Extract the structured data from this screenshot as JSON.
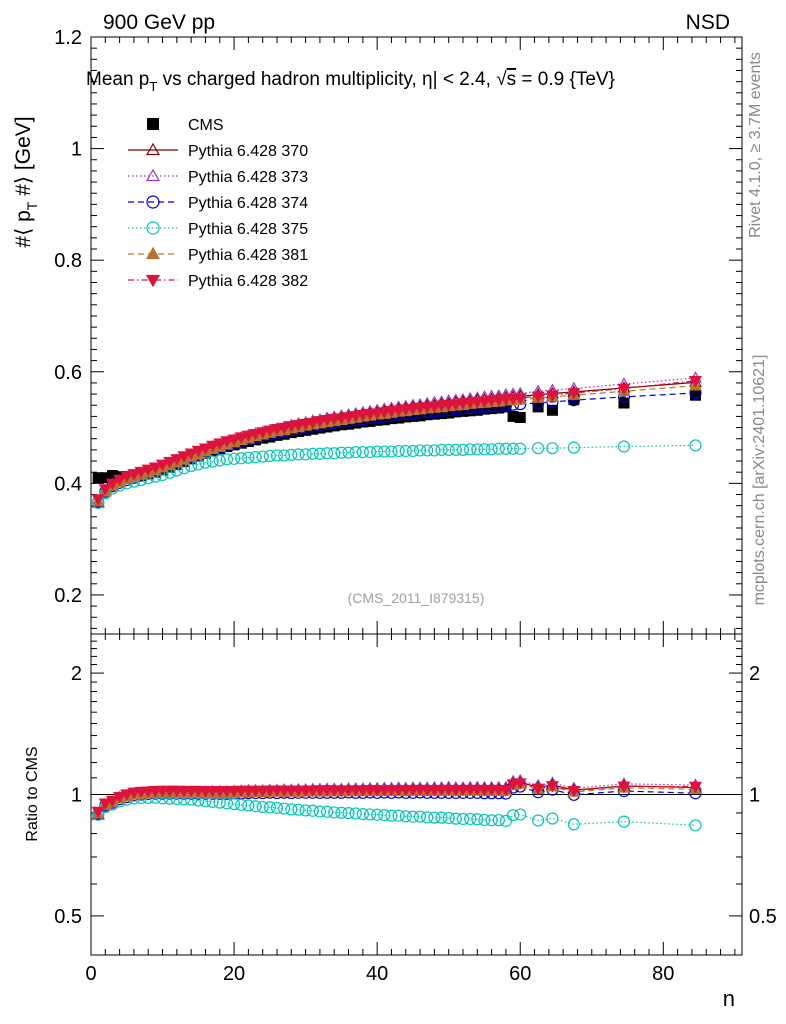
{
  "header": {
    "energy_label": "900 GeV pp",
    "process_label": "NSD"
  },
  "side_text": {
    "rivet": "Rivet 4.1.0, ≥ 3.7M events",
    "mcplots": "mcplots.cern.ch [arXiv:2401.10621]"
  },
  "chart_data": [
    {
      "type": "scatter",
      "panel": "main",
      "title": "Mean p_T vs charged hadron multiplicity, |η| < 2.4, √s = 0.9 {TeV}",
      "title_parts": {
        "prefix": "Mean p",
        "sub": "T",
        "middle": " vs charged hadron multiplicity, ",
        "eta": "η",
        "range": "| < 2.4, ",
        "sqrt": "√",
        "s": "s",
        "suffix": " = 0.9 {TeV}"
      },
      "ylabel": "#⟨ p_T #⟩ [GeV]",
      "ylabel_parts": {
        "pre": "#⟨ p",
        "sub": "T",
        "post": " #⟩ [GeV]"
      },
      "xlim": [
        0,
        91
      ],
      "ylim": [
        0.13,
        1.2
      ],
      "yticks": [
        0.2,
        0.4,
        0.6,
        0.8,
        1,
        1.2
      ],
      "ytick_labels": [
        "0.2",
        "0.4",
        "0.6",
        "0.8",
        "1",
        "1.2"
      ],
      "watermark": "(CMS_2011_I879315)",
      "x": [
        1,
        2,
        3,
        4,
        5,
        6,
        7,
        8,
        9,
        10,
        11,
        12,
        13,
        14,
        15,
        16,
        17,
        18,
        19,
        20,
        21,
        22,
        23,
        24,
        25,
        26,
        27,
        28,
        29,
        30,
        31,
        32,
        33,
        34,
        35,
        36,
        37,
        38,
        39,
        40,
        41,
        42,
        43,
        44,
        45,
        46,
        47,
        48,
        49,
        50,
        51,
        52,
        53,
        54,
        55,
        56,
        57,
        58,
        59,
        60,
        62.5,
        64.5,
        67.5,
        74.5,
        84.5
      ],
      "series": [
        {
          "name": "CMS",
          "color": "#000000",
          "marker": "square",
          "line": "none",
          "values": [
            0.41,
            0.41,
            0.414,
            0.412,
            0.412,
            0.412,
            0.414,
            0.417,
            0.42,
            0.424,
            0.429,
            0.434,
            0.439,
            0.444,
            0.449,
            0.454,
            0.458,
            0.462,
            0.466,
            0.469,
            0.472,
            0.475,
            0.478,
            0.481,
            0.483,
            0.486,
            0.488,
            0.491,
            0.493,
            0.495,
            0.497,
            0.499,
            0.501,
            0.503,
            0.505,
            0.506,
            0.508,
            0.51,
            0.511,
            0.513,
            0.514,
            0.516,
            0.517,
            0.519,
            0.52,
            0.521,
            0.523,
            0.524,
            0.525,
            0.526,
            0.528,
            0.529,
            0.53,
            0.531,
            0.533,
            0.534,
            0.535,
            0.537,
            0.52,
            0.518,
            0.537,
            0.531,
            0.55,
            0.544,
            0.558
          ]
        },
        {
          "name": "Pythia 6.428 370",
          "color": "#800000",
          "marker": "triangle-up-open",
          "line": "solid",
          "values": [
            0.365,
            0.385,
            0.396,
            0.403,
            0.408,
            0.412,
            0.416,
            0.42,
            0.424,
            0.428,
            0.433,
            0.438,
            0.443,
            0.448,
            0.453,
            0.458,
            0.463,
            0.467,
            0.471,
            0.475,
            0.479,
            0.482,
            0.486,
            0.489,
            0.492,
            0.495,
            0.498,
            0.501,
            0.503,
            0.506,
            0.508,
            0.511,
            0.513,
            0.515,
            0.517,
            0.519,
            0.521,
            0.523,
            0.525,
            0.527,
            0.529,
            0.531,
            0.533,
            0.534,
            0.536,
            0.537,
            0.539,
            0.54,
            0.542,
            0.543,
            0.545,
            0.546,
            0.547,
            0.549,
            0.55,
            0.551,
            0.552,
            0.554,
            0.555,
            0.556,
            0.559,
            0.561,
            0.564,
            0.571,
            0.581
          ]
        },
        {
          "name": "Pythia 6.428 373",
          "color": "#9932cc",
          "marker": "triangle-up-open",
          "line": "dotted",
          "values": [
            0.367,
            0.387,
            0.398,
            0.405,
            0.41,
            0.414,
            0.418,
            0.422,
            0.426,
            0.431,
            0.436,
            0.441,
            0.446,
            0.451,
            0.456,
            0.461,
            0.466,
            0.47,
            0.474,
            0.478,
            0.482,
            0.486,
            0.489,
            0.492,
            0.495,
            0.498,
            0.501,
            0.504,
            0.507,
            0.509,
            0.512,
            0.514,
            0.517,
            0.519,
            0.521,
            0.523,
            0.525,
            0.527,
            0.529,
            0.531,
            0.533,
            0.535,
            0.537,
            0.538,
            0.54,
            0.541,
            0.543,
            0.545,
            0.546,
            0.548,
            0.549,
            0.55,
            0.552,
            0.553,
            0.555,
            0.556,
            0.557,
            0.559,
            0.56,
            0.561,
            0.565,
            0.567,
            0.57,
            0.578,
            0.589
          ]
        },
        {
          "name": "Pythia 6.428 374",
          "color": "#0000cd",
          "marker": "circle-open",
          "line": "dashed",
          "values": [
            0.366,
            0.385,
            0.395,
            0.401,
            0.406,
            0.41,
            0.414,
            0.418,
            0.422,
            0.426,
            0.431,
            0.436,
            0.441,
            0.446,
            0.451,
            0.456,
            0.46,
            0.464,
            0.468,
            0.472,
            0.475,
            0.479,
            0.482,
            0.485,
            0.488,
            0.49,
            0.493,
            0.495,
            0.498,
            0.5,
            0.502,
            0.504,
            0.506,
            0.508,
            0.51,
            0.512,
            0.513,
            0.515,
            0.517,
            0.518,
            0.52,
            0.521,
            0.523,
            0.524,
            0.525,
            0.527,
            0.528,
            0.529,
            0.53,
            0.531,
            0.533,
            0.534,
            0.535,
            0.536,
            0.537,
            0.538,
            0.539,
            0.54,
            0.541,
            0.542,
            0.544,
            0.546,
            0.549,
            0.555,
            0.562
          ]
        },
        {
          "name": "Pythia 6.428 375",
          "color": "#00c8b4",
          "marker": "circle-open",
          "line": "dotted",
          "values": [
            0.365,
            0.382,
            0.391,
            0.396,
            0.4,
            0.403,
            0.406,
            0.409,
            0.412,
            0.415,
            0.419,
            0.423,
            0.427,
            0.431,
            0.434,
            0.437,
            0.439,
            0.441,
            0.443,
            0.444,
            0.445,
            0.446,
            0.447,
            0.448,
            0.449,
            0.45,
            0.45,
            0.451,
            0.452,
            0.452,
            0.453,
            0.453,
            0.454,
            0.454,
            0.455,
            0.455,
            0.456,
            0.456,
            0.456,
            0.457,
            0.457,
            0.457,
            0.458,
            0.458,
            0.458,
            0.459,
            0.459,
            0.459,
            0.46,
            0.46,
            0.46,
            0.46,
            0.461,
            0.461,
            0.461,
            0.461,
            0.462,
            0.462,
            0.462,
            0.462,
            0.463,
            0.463,
            0.464,
            0.466,
            0.468
          ]
        },
        {
          "name": "Pythia 6.428 381",
          "color": "#b87333",
          "marker": "triangle-up-filled",
          "line": "dashed",
          "values": [
            0.368,
            0.385,
            0.395,
            0.402,
            0.407,
            0.411,
            0.415,
            0.419,
            0.423,
            0.428,
            0.432,
            0.437,
            0.442,
            0.447,
            0.452,
            0.457,
            0.461,
            0.465,
            0.469,
            0.473,
            0.477,
            0.48,
            0.484,
            0.487,
            0.49,
            0.493,
            0.495,
            0.498,
            0.5,
            0.503,
            0.505,
            0.507,
            0.509,
            0.511,
            0.513,
            0.515,
            0.517,
            0.519,
            0.521,
            0.523,
            0.524,
            0.526,
            0.528,
            0.529,
            0.531,
            0.532,
            0.534,
            0.535,
            0.536,
            0.538,
            0.539,
            0.54,
            0.542,
            0.543,
            0.544,
            0.545,
            0.546,
            0.548,
            0.549,
            0.55,
            0.553,
            0.555,
            0.558,
            0.565,
            0.575
          ]
        },
        {
          "name": "Pythia 6.428 382",
          "color": "#dc143c",
          "marker": "triangle-down-filled",
          "line": "dashdot",
          "values": [
            0.372,
            0.39,
            0.4,
            0.407,
            0.413,
            0.417,
            0.421,
            0.425,
            0.429,
            0.434,
            0.439,
            0.444,
            0.449,
            0.454,
            0.459,
            0.463,
            0.468,
            0.472,
            0.476,
            0.479,
            0.483,
            0.486,
            0.489,
            0.492,
            0.495,
            0.498,
            0.5,
            0.503,
            0.505,
            0.507,
            0.509,
            0.512,
            0.514,
            0.516,
            0.517,
            0.519,
            0.521,
            0.523,
            0.525,
            0.526,
            0.528,
            0.53,
            0.531,
            0.533,
            0.534,
            0.536,
            0.537,
            0.538,
            0.54,
            0.541,
            0.542,
            0.544,
            0.545,
            0.546,
            0.547,
            0.549,
            0.55,
            0.551,
            0.552,
            0.553,
            0.556,
            0.558,
            0.562,
            0.57,
            0.584
          ]
        }
      ]
    },
    {
      "type": "scatter",
      "panel": "ratio",
      "ylabel": "Ratio to CMS",
      "xlabel": "n",
      "scale": "log",
      "xlim": [
        0,
        91
      ],
      "ylim": [
        0.4,
        2.5
      ],
      "reference": 1,
      "yticks": [
        0.5,
        1,
        2
      ],
      "ytick_labels": [
        "0.5",
        "1",
        "2"
      ],
      "xticks": [
        0,
        20,
        40,
        60,
        80
      ],
      "xtick_labels": [
        "0",
        "20",
        "40",
        "60",
        "80"
      ]
    }
  ]
}
